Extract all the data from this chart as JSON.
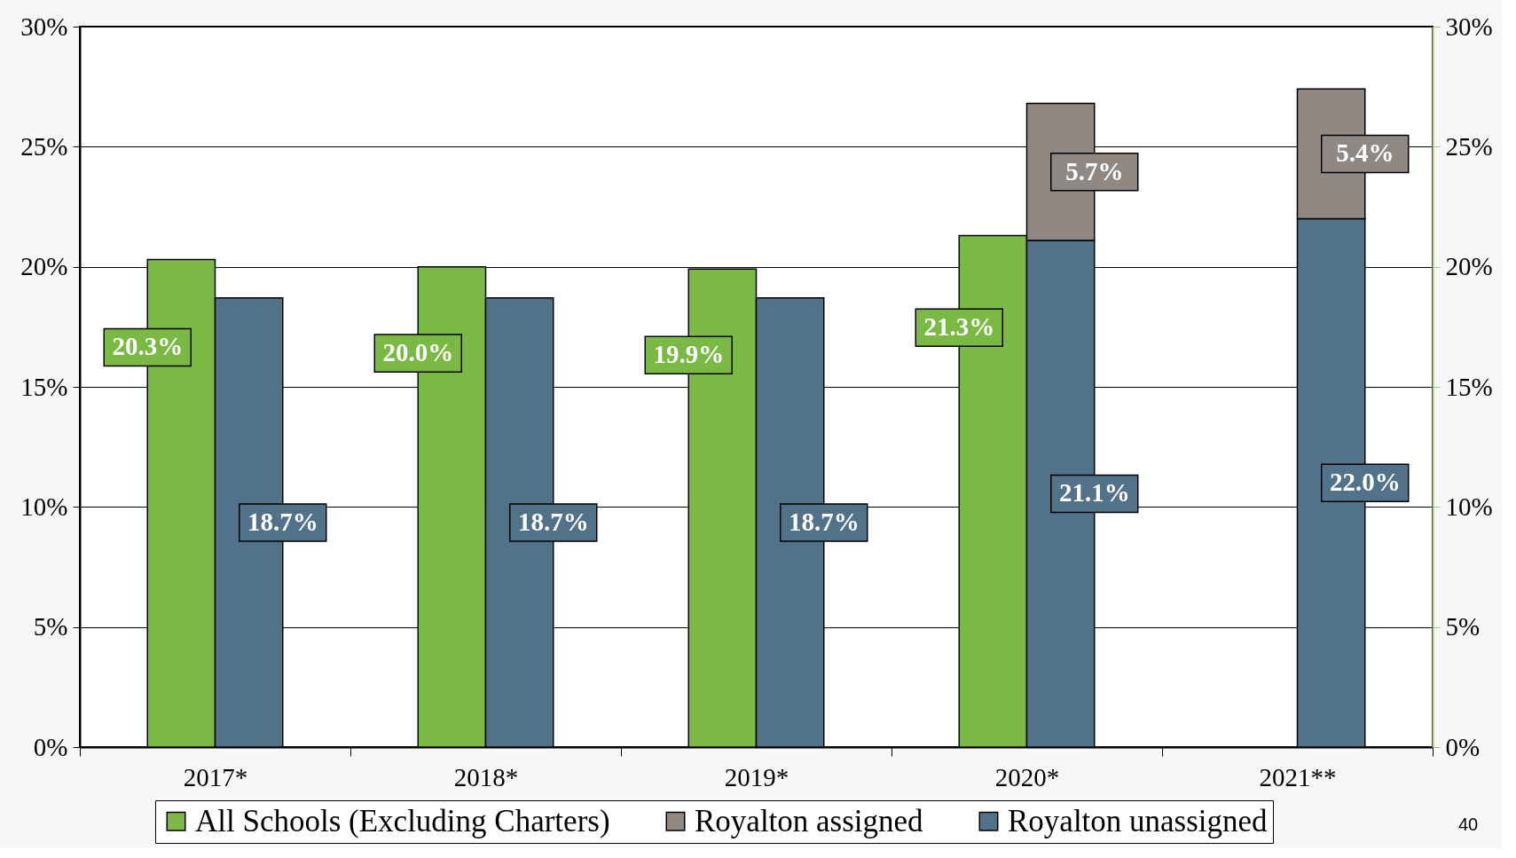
{
  "chart_data": {
    "type": "bar",
    "categories": [
      "2017*",
      "2018*",
      "2019*",
      "2020*",
      "2021**"
    ],
    "series": [
      {
        "name": "All Schools (Excluding Charters)",
        "color": "#7ab943",
        "values": [
          20.3,
          20.0,
          19.9,
          21.3,
          null
        ],
        "value_labels": [
          "20.3%",
          "20.0%",
          "19.9%",
          "21.3%",
          null
        ]
      },
      {
        "name": "Royalton unassigned",
        "color": "#52728a",
        "values": [
          18.7,
          18.7,
          18.7,
          21.1,
          22.0
        ],
        "value_labels": [
          "18.7%",
          "18.7%",
          "18.7%",
          "21.1%",
          "22.0%"
        ]
      },
      {
        "name": "Royalton assigned",
        "color": "#8f8883",
        "base": [
          null,
          null,
          null,
          21.1,
          22.0
        ],
        "values": [
          null,
          null,
          null,
          5.7,
          5.4
        ],
        "value_labels": [
          null,
          null,
          null,
          "5.7%",
          "5.4%"
        ]
      }
    ],
    "ylim": [
      0,
      30
    ],
    "yticks": [
      {
        "value": 0,
        "label": "0%"
      },
      {
        "value": 5,
        "label": "5%"
      },
      {
        "value": 10,
        "label": "10%"
      },
      {
        "value": 15,
        "label": "15%"
      },
      {
        "value": 20,
        "label": "20%"
      },
      {
        "value": 25,
        "label": "25%"
      },
      {
        "value": 30,
        "label": "30%"
      }
    ],
    "y2lim": [
      0,
      30
    ],
    "y2ticks": [
      {
        "value": 0,
        "label": "0%"
      },
      {
        "value": 5,
        "label": "5%"
      },
      {
        "value": 10,
        "label": "10%"
      },
      {
        "value": 15,
        "label": "15%"
      },
      {
        "value": 20,
        "label": "20%"
      },
      {
        "value": 25,
        "label": "25%"
      },
      {
        "value": 30,
        "label": "30%"
      }
    ],
    "grid": "y",
    "legend": "bottom",
    "annotations": [
      "40"
    ]
  }
}
